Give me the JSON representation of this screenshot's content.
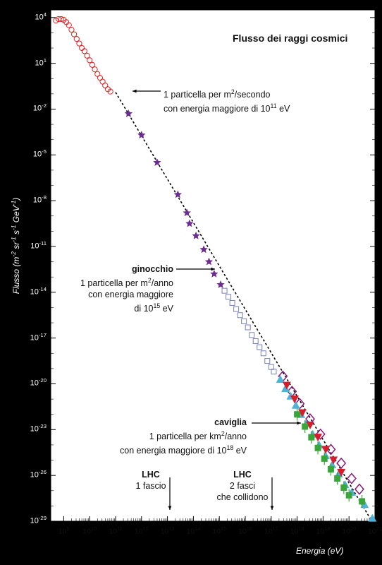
{
  "chart_data": {
    "type": "scatter",
    "title": "Flusso dei raggi cosmici",
    "xlabel": "Energia (eV)",
    "ylabel_base": "Flusso (m",
    "ylabel_sup1": "-2",
    "ylabel_mid1": " sr",
    "ylabel_sup2": "-1",
    "ylabel_mid2": " s",
    "ylabel_sup3": "-1",
    "ylabel_mid3": " GeV",
    "ylabel_sup4": "-1",
    "ylabel_end": ")",
    "x_log_range": [
      8.5,
      21.0
    ],
    "y_log_range": [
      -29,
      4.5
    ],
    "x_ticks": [
      "9",
      "10",
      "11",
      "12",
      "13",
      "14",
      "15",
      "16",
      "17",
      "18",
      "19",
      "20",
      "21"
    ],
    "y_ticks": [
      "4",
      "1",
      "-2",
      "-5",
      "-8",
      "-11",
      "-14",
      "-17",
      "-20",
      "-23",
      "-26",
      "-29"
    ],
    "fit_line": [
      [
        11.0,
        -0.9
      ],
      [
        20.95,
        -29.2
      ]
    ],
    "series": [
      {
        "marker": "open-circle",
        "color": "#e02020",
        "points": [
          [
            8.7,
            3.8
          ],
          [
            8.8,
            3.9
          ],
          [
            8.9,
            3.9
          ],
          [
            9.0,
            3.85
          ],
          [
            9.1,
            3.7
          ],
          [
            9.2,
            3.5
          ],
          [
            9.3,
            3.2
          ],
          [
            9.4,
            2.9
          ],
          [
            9.5,
            2.6
          ],
          [
            9.6,
            2.3
          ],
          [
            9.7,
            2.0
          ],
          [
            9.8,
            1.8
          ],
          [
            9.9,
            1.5
          ],
          [
            10.0,
            1.2
          ],
          [
            10.1,
            0.9
          ],
          [
            10.2,
            0.6
          ],
          [
            10.3,
            0.3
          ],
          [
            10.4,
            0.05
          ],
          [
            10.5,
            -0.2
          ],
          [
            10.6,
            -0.45
          ],
          [
            10.7,
            -0.7
          ],
          [
            10.8,
            -0.85
          ]
        ]
      },
      {
        "marker": "star",
        "color": "#6b2d8f",
        "points": [
          [
            11.5,
            -2.3
          ],
          [
            12.0,
            -3.7
          ],
          [
            12.6,
            -5.5
          ],
          [
            13.4,
            -7.6
          ],
          [
            13.75,
            -8.8
          ],
          [
            13.85,
            -9.5
          ],
          [
            14.1,
            -10.3
          ],
          [
            14.4,
            -11.2
          ],
          [
            14.6,
            -12.0
          ],
          [
            14.8,
            -12.8
          ],
          [
            15.05,
            -13.5
          ]
        ]
      },
      {
        "marker": "open-square",
        "color": "#7a7fb8",
        "points": [
          [
            15.2,
            -13.9
          ],
          [
            15.35,
            -14.3
          ],
          [
            15.5,
            -14.7
          ],
          [
            15.65,
            -15.1
          ],
          [
            15.8,
            -15.5
          ],
          [
            15.95,
            -15.9
          ],
          [
            16.1,
            -16.3
          ],
          [
            16.25,
            -16.8
          ],
          [
            16.4,
            -17.2
          ],
          [
            16.55,
            -17.6
          ],
          [
            16.7,
            -18.0
          ],
          [
            16.85,
            -18.5
          ],
          [
            17.0,
            -18.9
          ],
          [
            17.1,
            -19.2
          ]
        ]
      },
      {
        "marker": "open-diamond",
        "color": "#8a1a7a",
        "points": [
          [
            17.45,
            -19.5
          ],
          [
            17.8,
            -20.5
          ],
          [
            18.1,
            -21.3
          ],
          [
            18.5,
            -22.3
          ],
          [
            18.9,
            -23.3
          ],
          [
            19.3,
            -24.3
          ],
          [
            19.7,
            -25.2
          ],
          [
            20.1,
            -26.2
          ],
          [
            20.4,
            -26.9
          ]
        ]
      },
      {
        "marker": "triangle-up",
        "color": "#4fb3d9",
        "points": [
          [
            17.35,
            -19.7
          ],
          [
            17.55,
            -20.3
          ],
          [
            17.75,
            -20.8
          ],
          [
            17.95,
            -21.4
          ],
          [
            18.15,
            -22.0
          ],
          [
            18.35,
            -22.6
          ],
          [
            18.6,
            -23.3
          ],
          [
            18.85,
            -24.0
          ],
          [
            19.1,
            -24.7
          ],
          [
            19.35,
            -25.3
          ],
          [
            19.6,
            -25.9
          ],
          [
            19.85,
            -26.6
          ],
          [
            20.1,
            -27.1
          ],
          [
            20.6,
            -27.9
          ],
          [
            20.9,
            -28.8
          ]
        ]
      },
      {
        "marker": "triangle-down",
        "color": "#d81c2c",
        "points": [
          [
            17.6,
            -20.1
          ],
          [
            17.9,
            -21.0
          ],
          [
            18.2,
            -21.9
          ],
          [
            18.5,
            -22.7
          ],
          [
            18.8,
            -23.5
          ],
          [
            19.1,
            -24.3
          ],
          [
            19.4,
            -25.0
          ],
          [
            19.7,
            -25.8
          ]
        ]
      },
      {
        "marker": "square",
        "color": "#3aa63a",
        "points": [
          [
            18.0,
            -22.0
          ],
          [
            18.3,
            -22.8
          ],
          [
            18.55,
            -23.5
          ],
          [
            18.8,
            -24.2
          ],
          [
            19.05,
            -24.9
          ],
          [
            19.3,
            -25.6
          ],
          [
            19.55,
            -26.2
          ],
          [
            19.8,
            -26.8
          ],
          [
            20.0,
            -27.3
          ],
          [
            20.5,
            -27.7
          ]
        ]
      }
    ]
  },
  "annotations": {
    "a1_line1": "1 particella per m",
    "a1_sup1": "2",
    "a1_line1_end": "/secondo",
    "a1_line2": "con energia maggiore di 10",
    "a1_sup2": "11",
    "a1_line2_end": " eV",
    "knee_title": "ginocchio",
    "knee_line1": "1 particella per m",
    "knee_sup1": "2",
    "knee_line1_end": "/anno",
    "knee_line2": "con energia maggiore",
    "knee_line3": "di 10",
    "knee_sup2": "15",
    "knee_line3_end": " eV",
    "ankle_title": "caviglia",
    "ankle_line1": "1 particella per km",
    "ankle_sup1": "2",
    "ankle_line1_end": "/anno",
    "ankle_line2": "con energia maggiore di 10",
    "ankle_sup2": "18",
    "ankle_line2_end": " eV",
    "lhc1_title": "LHC",
    "lhc1_sub": "1 fascio",
    "lhc2_title": "LHC",
    "lhc2_sub1": "2 fasci",
    "lhc2_sub2": "che collidono"
  },
  "tick_base": "10"
}
